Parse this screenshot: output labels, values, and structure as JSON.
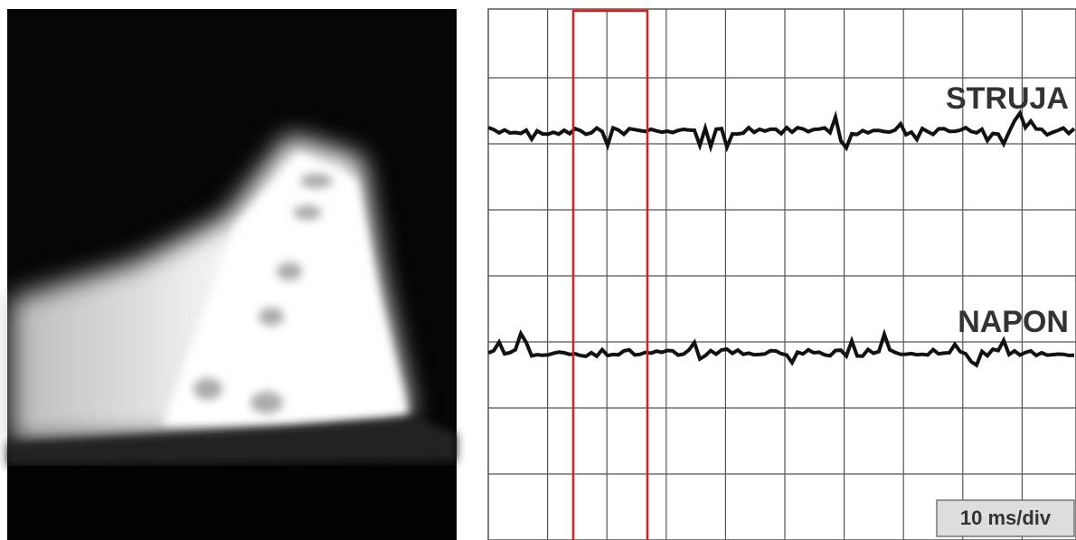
{
  "labels": {
    "current": "STRUJA",
    "voltage": "NAPON",
    "timebase": "10 ms/div"
  }
}
